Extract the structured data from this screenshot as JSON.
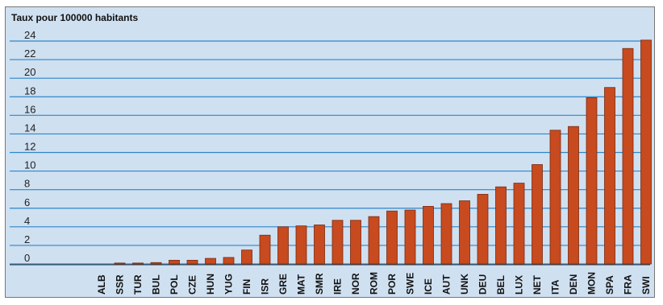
{
  "chart_data": {
    "type": "bar",
    "title": "Taux pour 100000 habitants",
    "categories": [
      "ALB",
      "SSR",
      "TUR",
      "BUL",
      "POL",
      "CZE",
      "HUN",
      "YUG",
      "FIN",
      "ISR",
      "GRE",
      "MAT",
      "SMR",
      "IRE",
      "NOR",
      "ROM",
      "POR",
      "SWE",
      "ICE",
      "AUT",
      "UNK",
      "DEU",
      "BEL",
      "LUX",
      "NET",
      "ITA",
      "DEN",
      "MON",
      "SPA",
      "FRA",
      "SWI"
    ],
    "values": [
      0,
      0.1,
      0.1,
      0.15,
      0.4,
      0.4,
      0.6,
      0.7,
      1.5,
      3.1,
      4.0,
      4.1,
      4.2,
      4.7,
      4.7,
      5.1,
      5.7,
      5.8,
      6.2,
      6.5,
      6.8,
      7.5,
      8.3,
      8.7,
      10.7,
      14.4,
      14.8,
      17.9,
      19.0,
      23.2,
      24.1
    ],
    "yticks": [
      0,
      2,
      4,
      6,
      8,
      10,
      12,
      14,
      16,
      18,
      20,
      22,
      24
    ],
    "ylim": [
      0,
      24
    ],
    "bar_color": "#c84a1f",
    "grid_color": "#2e86c8",
    "background": "#cfe0f1",
    "grid": true
  }
}
